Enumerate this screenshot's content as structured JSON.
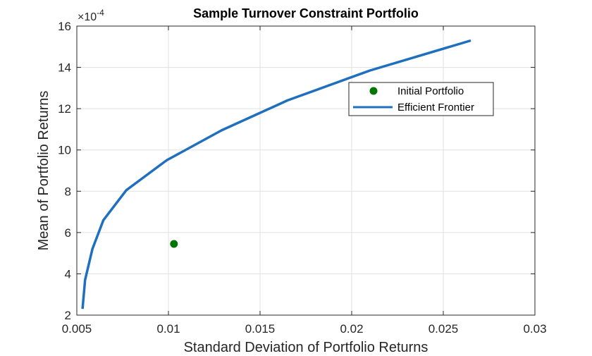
{
  "chart_data": {
    "type": "line",
    "title": "Sample Turnover Constraint Portfolio",
    "xlabel": "Standard Deviation of Portfolio Returns",
    "ylabel": "Mean of Portfolio Returns",
    "y_exponent_base": "×10",
    "y_exponent_power": "-4",
    "xlim": [
      0.005,
      0.03
    ],
    "ylim": [
      2,
      16
    ],
    "x_ticks": [
      0.005,
      0.01,
      0.015,
      0.02,
      0.025,
      0.03
    ],
    "x_tick_labels": [
      "0.005",
      "0.01",
      "0.015",
      "0.02",
      "0.025",
      "0.03"
    ],
    "y_ticks": [
      2,
      4,
      6,
      8,
      10,
      12,
      14,
      16
    ],
    "y_tick_labels": [
      "2",
      "4",
      "6",
      "8",
      "10",
      "12",
      "14",
      "16"
    ],
    "grid": true,
    "legend_position": "top-right",
    "series": [
      {
        "name": "Initial Portfolio",
        "kind": "scatter",
        "color": "#007500",
        "points": [
          [
            0.0103,
            5.45
          ]
        ]
      },
      {
        "name": "Efficient Frontier",
        "kind": "line",
        "color": "#1f6fbf",
        "points": [
          [
            0.00531,
            2.3
          ],
          [
            0.00545,
            3.7
          ],
          [
            0.00585,
            5.2
          ],
          [
            0.00645,
            6.6
          ],
          [
            0.0077,
            8.05
          ],
          [
            0.0099,
            9.5
          ],
          [
            0.0129,
            10.95
          ],
          [
            0.0165,
            12.4
          ],
          [
            0.021,
            13.85
          ],
          [
            0.0265,
            15.3
          ]
        ]
      }
    ]
  }
}
